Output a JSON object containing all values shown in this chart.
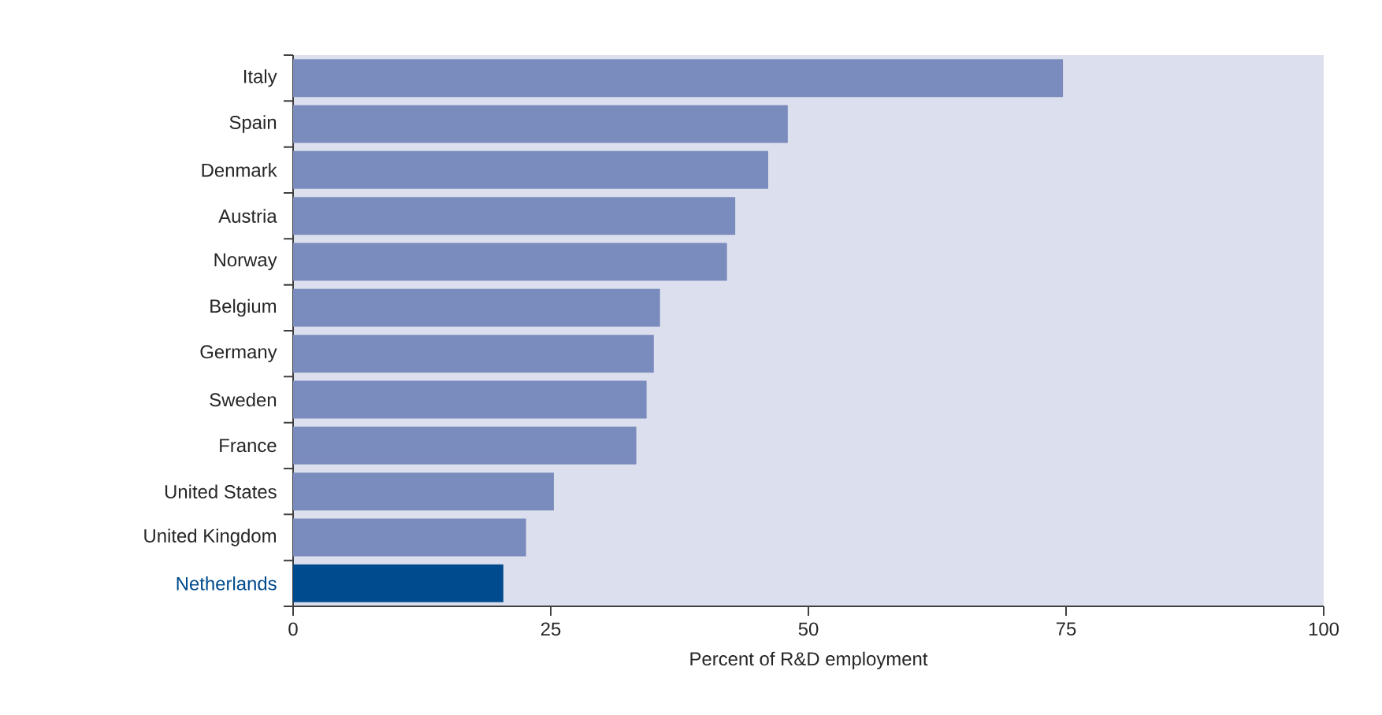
{
  "chart_data": {
    "type": "bar",
    "orientation": "horizontal",
    "xlabel": "Percent of R&D employment",
    "categories": [
      "Italy",
      "Spain",
      "Denmark",
      "Austria",
      "Norway",
      "Belgium",
      "Germany",
      "Sweden",
      "France",
      "United States",
      "United Kingdom",
      "Netherlands"
    ],
    "values": [
      74.7,
      48.0,
      46.1,
      42.9,
      42.1,
      35.6,
      35.0,
      34.3,
      33.3,
      25.3,
      22.6,
      20.4
    ],
    "colors": [
      "#7a8bbd",
      "#7a8bbd",
      "#7a8bbd",
      "#7a8bbd",
      "#7a8bbd",
      "#7a8bbd",
      "#7a8bbd",
      "#7a8bbd",
      "#7a8bbd",
      "#7a8bbd",
      "#7a8bbd",
      "#004b8d"
    ],
    "xlim": [
      0,
      100
    ],
    "xticks": [
      0,
      25,
      50,
      75,
      100
    ]
  }
}
